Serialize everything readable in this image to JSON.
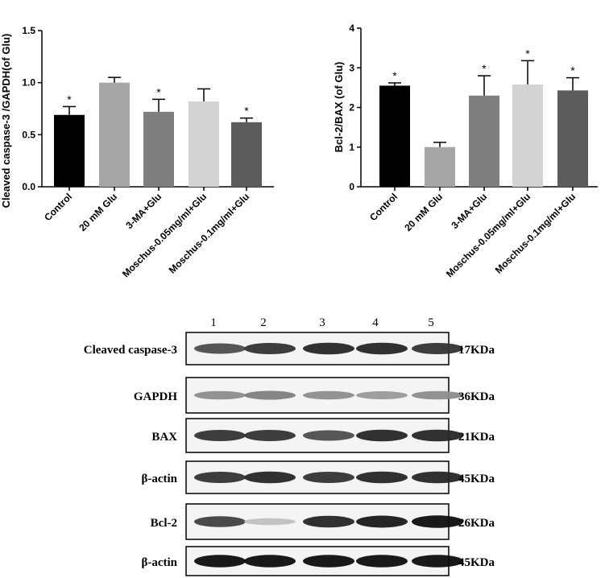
{
  "chart_data": [
    {
      "type": "bar",
      "ylabel": "Cleaved caspase-3 /GAPDH(of Glu)",
      "ylim": [
        0,
        1.5
      ],
      "yticks": [
        "0.0",
        "0.5",
        "1.0",
        "1.5"
      ],
      "categories": [
        "Control",
        "20 mM Glu",
        "3-MA+Glu",
        "Moschus-0.05mg/ml+Glu",
        "Moschus-0.1mg/ml+Glu"
      ],
      "values": [
        0.69,
        1.0,
        0.72,
        0.82,
        0.62
      ],
      "error": [
        0.08,
        0.05,
        0.12,
        0.12,
        0.04
      ],
      "significance": [
        "*",
        "",
        "*",
        "",
        "*"
      ],
      "colors": [
        "#000000",
        "#a6a6a6",
        "#7f7f7f",
        "#d3d3d3",
        "#5c5c5c"
      ],
      "grid": false
    },
    {
      "type": "bar",
      "ylabel": "Bcl-2/BAX (of Glu)",
      "ylim": [
        0,
        4
      ],
      "yticks": [
        "0",
        "1",
        "2",
        "3",
        "4"
      ],
      "categories": [
        "Control",
        "20 mM Glu",
        "3-MA+Glu",
        "Moschus-0.05mg/ml+Glu",
        "Moschus-0.1mg/ml+Glu"
      ],
      "values": [
        2.55,
        1.0,
        2.3,
        2.58,
        2.43
      ],
      "error": [
        0.07,
        0.12,
        0.5,
        0.6,
        0.32
      ],
      "significance": [
        "*",
        "",
        "*",
        "*",
        "*"
      ],
      "colors": [
        "#000000",
        "#a6a6a6",
        "#7f7f7f",
        "#d3d3d3",
        "#5c5c5c"
      ],
      "grid": false
    }
  ],
  "blot": {
    "lanes": [
      "1",
      "2",
      "3",
      "4",
      "5"
    ],
    "rows": [
      {
        "protein": "Cleaved caspase-3",
        "size": "17KDa",
        "band_intensity": [
          0.7,
          0.8,
          0.85,
          0.85,
          0.8
        ]
      },
      {
        "protein": "GAPDH",
        "size": "36KDa",
        "band_intensity": [
          0.45,
          0.5,
          0.45,
          0.4,
          0.45
        ]
      },
      {
        "protein": "BAX",
        "size": "21KDa",
        "band_intensity": [
          0.8,
          0.8,
          0.7,
          0.85,
          0.85
        ]
      },
      {
        "protein": "β-actin",
        "size": "45KDa",
        "band_intensity": [
          0.8,
          0.85,
          0.8,
          0.85,
          0.85
        ]
      },
      {
        "protein": "Bcl-2",
        "size": "26KDa",
        "band_intensity": [
          0.75,
          0.25,
          0.85,
          0.9,
          0.95
        ]
      },
      {
        "protein": "β-actin",
        "size": "45KDa",
        "band_intensity": [
          0.95,
          0.95,
          0.95,
          0.95,
          0.95
        ]
      }
    ]
  }
}
